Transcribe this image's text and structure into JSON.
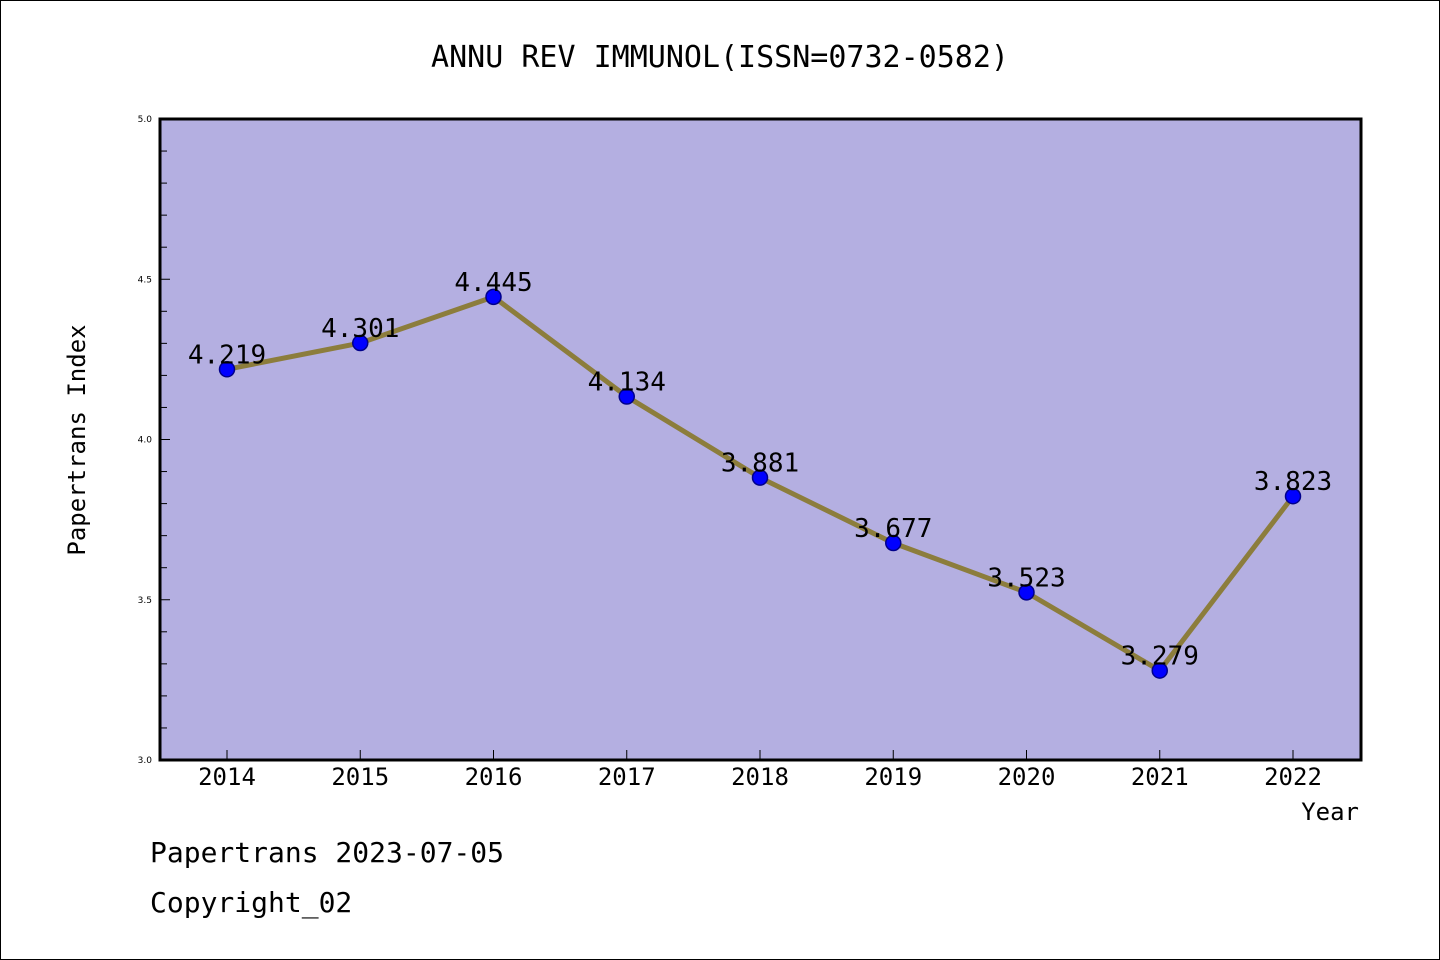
{
  "colors": {
    "plot_background": "#b4afe1",
    "line": "#8c7d3c",
    "marker_fill": "#0000ff",
    "marker_stroke": "#00008b",
    "axis": "#000000",
    "text": "#000000"
  },
  "chart_data": {
    "type": "line",
    "title": "ANNU REV IMMUNOL(ISSN=0732-0582)",
    "xlabel": "Year",
    "ylabel": "Papertrans Index",
    "categories": [
      "2014",
      "2015",
      "2016",
      "2017",
      "2018",
      "2019",
      "2020",
      "2021",
      "2022"
    ],
    "series": [
      {
        "values": [
          4.219,
          4.301,
          4.445,
          4.134,
          3.881,
          3.677,
          3.523,
          3.279,
          3.823
        ]
      }
    ],
    "data_labels": [
      "4.219",
      "4.301",
      "4.445",
      "4.134",
      "3.881",
      "3.677",
      "3.523",
      "3.279",
      "3.823"
    ],
    "ylim": [
      3.0,
      5.0
    ],
    "y_ticks": [
      "3.0",
      "3.5",
      "4.0",
      "4.5",
      "5.0"
    ],
    "y_minor_step": 0.1,
    "grid": false,
    "legend": "none"
  },
  "footer": {
    "line1": "Papertrans 2023-07-05",
    "line2": "Copyright_02"
  }
}
